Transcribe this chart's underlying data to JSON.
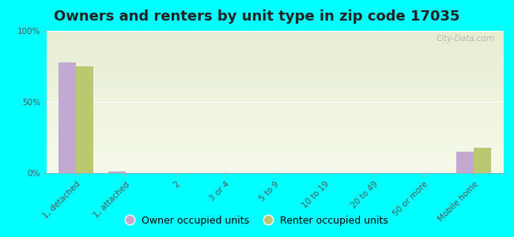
{
  "title": "Owners and renters by unit type in zip code 17035",
  "categories": [
    "1, detached",
    "1, attached",
    "2",
    "3 or 4",
    "5 to 9",
    "10 to 19",
    "20 to 49",
    "50 or more",
    "Mobile home"
  ],
  "owner_values": [
    78,
    1,
    0,
    0,
    0,
    0,
    0,
    0,
    15
  ],
  "renter_values": [
    75,
    0,
    0,
    0,
    0,
    0,
    0,
    0,
    18
  ],
  "owner_color": "#c3a8d1",
  "renter_color": "#bcc870",
  "background_outer": "#00ffff",
  "ylim": [
    0,
    100
  ],
  "yticks": [
    0,
    50,
    100
  ],
  "ytick_labels": [
    "0%",
    "50%",
    "100%"
  ],
  "bar_width": 0.35,
  "legend_owner": "Owner occupied units",
  "legend_renter": "Renter occupied units",
  "title_fontsize": 13,
  "tick_fontsize": 7.5,
  "legend_fontsize": 9
}
